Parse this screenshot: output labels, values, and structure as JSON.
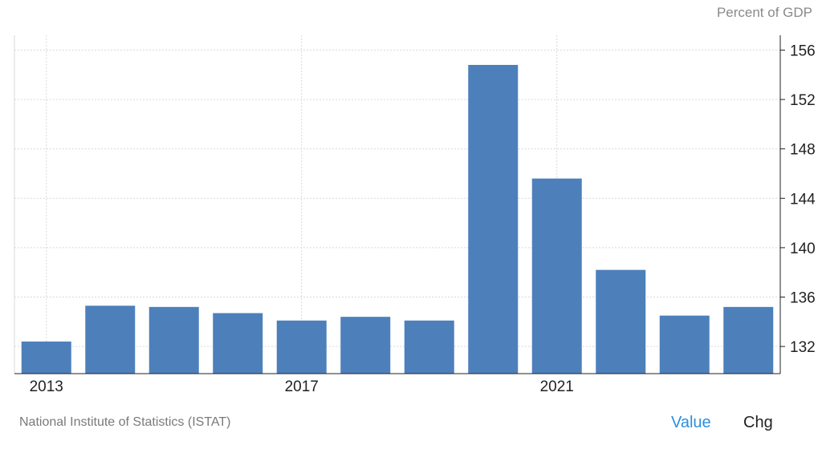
{
  "unit_label": "Percent of GDP",
  "source": "National Institute of Statistics (ISTAT)",
  "tabs": {
    "value": "Value",
    "change": "Chg"
  },
  "colors": {
    "bar": "#4d80bb",
    "grid": "#d9d9d9",
    "axis": "#222222"
  },
  "chart_data": {
    "type": "bar",
    "x": [
      2013,
      2014,
      2015,
      2016,
      2017,
      2018,
      2019,
      2020,
      2021,
      2022,
      2023,
      2024
    ],
    "values": [
      132.4,
      135.3,
      135.2,
      134.7,
      134.1,
      134.4,
      134.1,
      154.8,
      145.6,
      138.2,
      134.5,
      135.2
    ],
    "xticks": [
      "2013",
      "2017",
      "2021"
    ],
    "yticks": [
      "132",
      "136",
      "140",
      "144",
      "148",
      "152",
      "156"
    ],
    "ylim": [
      129.8,
      157.2
    ],
    "grid": true,
    "yaxis_position": "right"
  }
}
